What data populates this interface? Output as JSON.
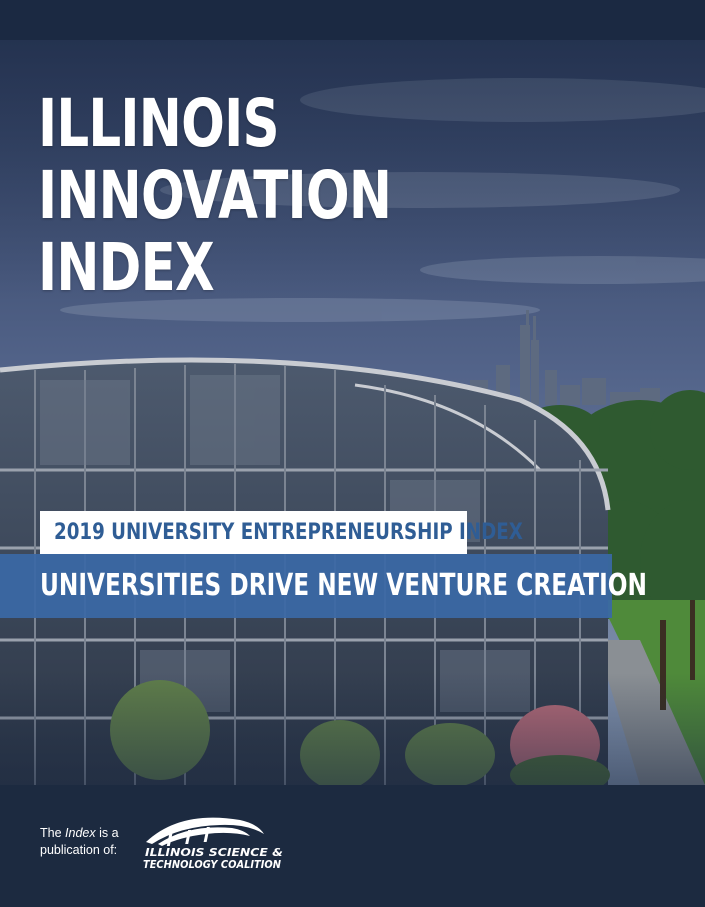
{
  "cover": {
    "title_lines": [
      "ILLINOIS",
      "INNOVATION",
      "INDEX"
    ],
    "subtitle": "2019 UNIVERSITY ENTREPRENEURSHIP INDEX",
    "headline": "UNIVERSITIES DRIVE NEW VENTURE CREATION"
  },
  "footer": {
    "publication_prefix": "The ",
    "publication_italic": "Index",
    "publication_suffix": " is a",
    "publication_line2": "publication of:",
    "logo_line1": "ILLINOIS SCIENCE &",
    "logo_line2": "TECHNOLOGY COALITION"
  },
  "colors": {
    "navy": "#1c2a40",
    "band_blue": "#3a68a6",
    "subtitle_blue": "#2f5d95"
  },
  "icons": {
    "logo_mark": "arch-swoosh-icon"
  }
}
